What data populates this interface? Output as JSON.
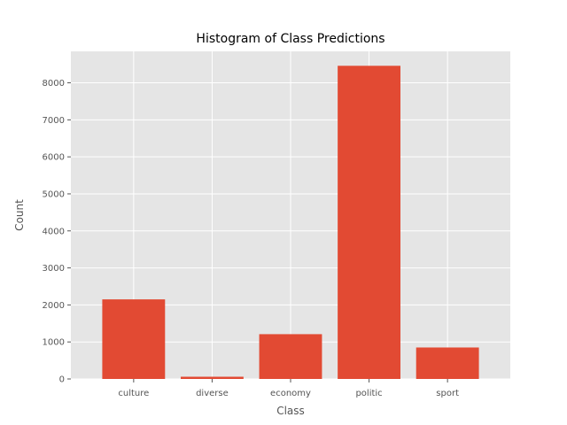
{
  "chart_data": {
    "type": "bar",
    "title": "Histogram of Class Predictions",
    "xlabel": "Class",
    "ylabel": "Count",
    "categories": [
      "culture",
      "diverse",
      "economy",
      "politic",
      "sport"
    ],
    "values": [
      2150,
      60,
      1210,
      8460,
      850
    ],
    "ylim": [
      0,
      8850
    ],
    "yticks": [
      0,
      1000,
      2000,
      3000,
      4000,
      5000,
      6000,
      7000,
      8000
    ],
    "grid": true,
    "legend": "none",
    "colors": {
      "bar": "#E24A33",
      "plot_background": "#E5E5E5",
      "grid": "#FFFFFF",
      "text": "#555555",
      "title": "#000000"
    }
  }
}
